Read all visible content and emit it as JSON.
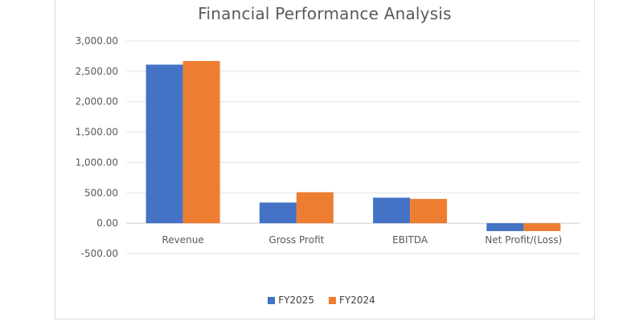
{
  "chart_data": {
    "type": "bar",
    "title": "Financial Performance Analysis",
    "categories": [
      "Revenue",
      "Gross Profit",
      "EBITDA",
      "Net Profit/(Loss)"
    ],
    "series": [
      {
        "name": "FY2025",
        "values": [
          2610,
          340,
          420,
          -130
        ],
        "color": "#4472C4"
      },
      {
        "name": "FY2024",
        "values": [
          2670,
          510,
          400,
          -130
        ],
        "color": "#ED7D31"
      }
    ],
    "yticks": [
      "3,000.00",
      "2,500.00",
      "2,000.00",
      "1,500.00",
      "1,000.00",
      "500.00",
      "0.00",
      "-500.00"
    ],
    "ylim": [
      -500,
      3000
    ],
    "grid": true,
    "legend_position": "bottom"
  }
}
